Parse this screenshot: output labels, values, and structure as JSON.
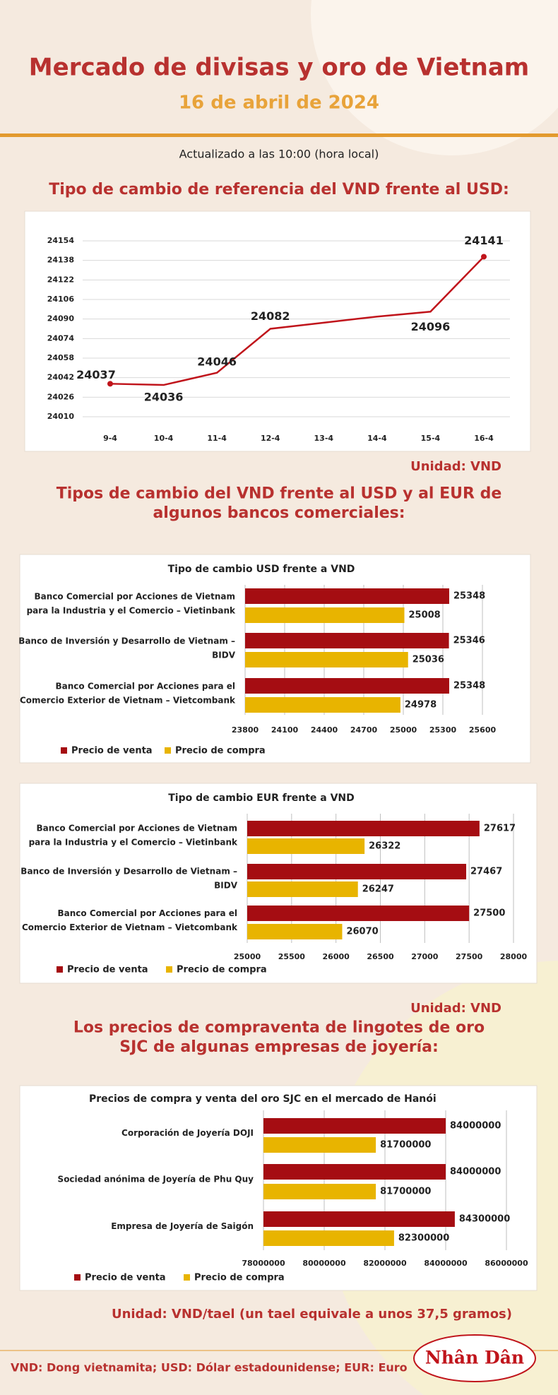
{
  "header": {
    "title": "Mercado de divisas y oro de Vietnam",
    "date": "16 de abril de 2024",
    "updated": "Actualizado a las 10:00 (hora local)"
  },
  "sections": [
    {
      "title": "Tipo de cambio de referencia del VND frente al USD:",
      "unit": "Unidad: VND"
    },
    {
      "title": "Tipos de cambio del VND frente al USD y al EUR de\nalgunos bancos comerciales:",
      "unit": "Unidad: VND"
    },
    {
      "title": "Los precios de compraventa de lingotes de oro\nSJC de algunas empresas de joyería:",
      "unit": "Unidad: VND/tael (un tael equivale a unos 37,5 gramos)"
    }
  ],
  "chart_data": [
    {
      "type": "line",
      "categories": [
        "9-4",
        "10-4",
        "11-4",
        "12-4",
        "13-4",
        "14-4",
        "15-4",
        "16-4"
      ],
      "values": [
        24037,
        24036,
        24046,
        24082,
        24087,
        24092,
        24096,
        24141
      ],
      "value_labels": [
        "24037",
        "24036",
        "24046",
        "24082",
        null,
        null,
        "24096",
        "24141"
      ],
      "color": "#c0141b",
      "ylim": [
        24010,
        24154
      ],
      "yticks": [
        24010,
        24026,
        24042,
        24058,
        24074,
        24090,
        24106,
        24122,
        24138,
        24154
      ],
      "grid": true
    },
    {
      "type": "barh",
      "title": "Tipo de cambio USD frente a VND",
      "categories": [
        "Banco Comercial por Acciones de Vietnam\npara la Industria y el Comercio – Vietinbank",
        "Banco de Inversión y Desarrollo de Vietnam –\nBIDV",
        "Banco Comercial por Acciones para el\nComercio Exterior de Vietnam – Vietcombank"
      ],
      "series": [
        {
          "name": "Precio de venta",
          "color": "#a50d12",
          "values": [
            25348,
            25346,
            25348
          ]
        },
        {
          "name": "Precio de compra",
          "color": "#e8b400",
          "values": [
            25008,
            25036,
            24978
          ]
        }
      ],
      "xlim": [
        23800,
        25600
      ],
      "xticks": [
        23800,
        24100,
        24400,
        24700,
        25000,
        25300,
        25600
      ],
      "grid": true
    },
    {
      "type": "barh",
      "title": "Tipo de cambio EUR frente a VND",
      "categories": [
        "Banco Comercial por Acciones de Vietnam\npara la Industria y el Comercio – Vietinbank",
        "Banco de Inversión y Desarrollo de Vietnam –\nBIDV",
        "Banco Comercial por Acciones para el\nComercio Exterior de Vietnam – Vietcombank"
      ],
      "series": [
        {
          "name": "Precio de venta",
          "color": "#a50d12",
          "values": [
            27617,
            27467,
            27500
          ]
        },
        {
          "name": "Precio de compra",
          "color": "#e8b400",
          "values": [
            26322,
            26247,
            26070
          ]
        }
      ],
      "xlim": [
        25000,
        28000
      ],
      "xticks": [
        25000,
        25500,
        26000,
        26500,
        27000,
        27500,
        28000
      ],
      "grid": true
    },
    {
      "type": "barh",
      "title": "Precios de compra y venta del oro SJC en el mercado de Hanói",
      "categories": [
        "Corporación de Joyería DOJI",
        "Sociedad anónima de Joyería de Phu Quy",
        "Empresa de Joyería de Saigón"
      ],
      "series": [
        {
          "name": "Precio de venta",
          "color": "#a50d12",
          "values": [
            84000000,
            84000000,
            84300000
          ]
        },
        {
          "name": "Precio de compra",
          "color": "#e8b400",
          "values": [
            81700000,
            81700000,
            82300000
          ]
        }
      ],
      "xlim": [
        78000000,
        86000000
      ],
      "xticks": [
        78000000,
        80000000,
        82000000,
        84000000,
        86000000
      ],
      "grid": true
    }
  ],
  "footer": {
    "note": "VND: Dong vietnamita; USD: Dólar estadounidense; EUR: Euro",
    "logo": "Nhân Dân"
  }
}
